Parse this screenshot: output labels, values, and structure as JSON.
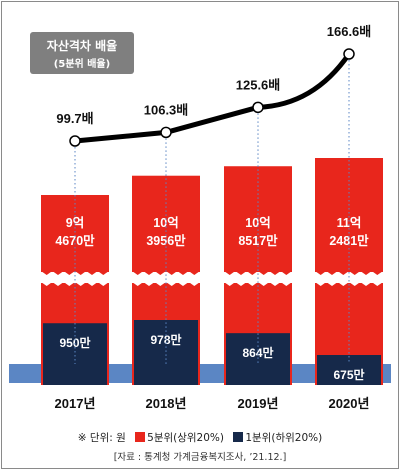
{
  "chart_data": {
    "type": "bar",
    "title": "자산격차 배율",
    "subtitle": "(5분위 배율)",
    "categories": [
      "2017년",
      "2018년",
      "2019년",
      "2020년"
    ],
    "series": [
      {
        "name": "5분위(상위20%)",
        "color": "#e8261c",
        "values": [
          94670,
          103956,
          108517,
          112481
        ],
        "top_labels": [
          "9억",
          "10억",
          "10억",
          "11억"
        ],
        "bottom_labels": [
          "4670만",
          "3956만",
          "8517만",
          "2481만"
        ]
      },
      {
        "name": "1분위(하위20%)",
        "color": "#16294a",
        "values": [
          950,
          978,
          864,
          675
        ],
        "labels": [
          "950만",
          "978만",
          "864만",
          "675만"
        ]
      }
    ],
    "ratio": {
      "values": [
        99.7,
        106.3,
        125.6,
        166.6
      ],
      "labels": [
        "99.7배",
        "106.3배",
        "125.6배",
        "166.6배"
      ]
    },
    "unit_note": "※ 단위: 원",
    "source": "[자료 : 통계청 가계금융복지조사, ’21.12.]",
    "colors": {
      "baseline_band": "#5b86c4",
      "ratio_line": "#000000"
    }
  }
}
